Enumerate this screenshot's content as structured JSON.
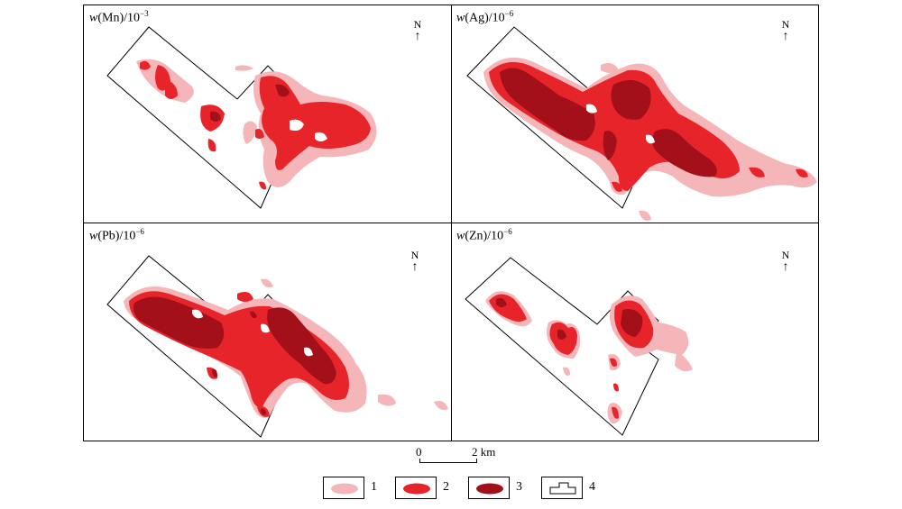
{
  "panels": [
    {
      "var": "w",
      "element": "(Mn)",
      "unit_base": "/10",
      "unit_exp": "−3"
    },
    {
      "var": "w",
      "element": "(Ag)",
      "unit_base": "/10",
      "unit_exp": "−6"
    },
    {
      "var": "w",
      "element": "(Pb)",
      "unit_base": "/10",
      "unit_exp": "−6"
    },
    {
      "var": "w",
      "element": "(Zn)",
      "unit_base": "/10",
      "unit_exp": "−6"
    }
  ],
  "north_label": "N",
  "scale": {
    "start": "0",
    "end": "2 km"
  },
  "legend": [
    {
      "label": "1",
      "meaning_color": "#f4b6b8"
    },
    {
      "label": "2",
      "meaning_color": "#e8242b"
    },
    {
      "label": "3",
      "meaning_color": "#a3101a"
    },
    {
      "label": "4"
    }
  ],
  "colors": {
    "level1": "#f4b6b8",
    "level2": "#e8242b",
    "level3": "#a3101a"
  }
}
